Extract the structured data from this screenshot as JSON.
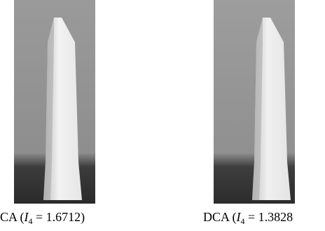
{
  "figures": [
    {
      "caption": {
        "prefix": "CA (",
        "variable": "I",
        "subscript": "4",
        "suffix": " = 1.6712)"
      }
    },
    {
      "caption": {
        "prefix": "DCA (",
        "variable": "I",
        "subscript": "4",
        "suffix": " = 1.3828"
      }
    }
  ]
}
